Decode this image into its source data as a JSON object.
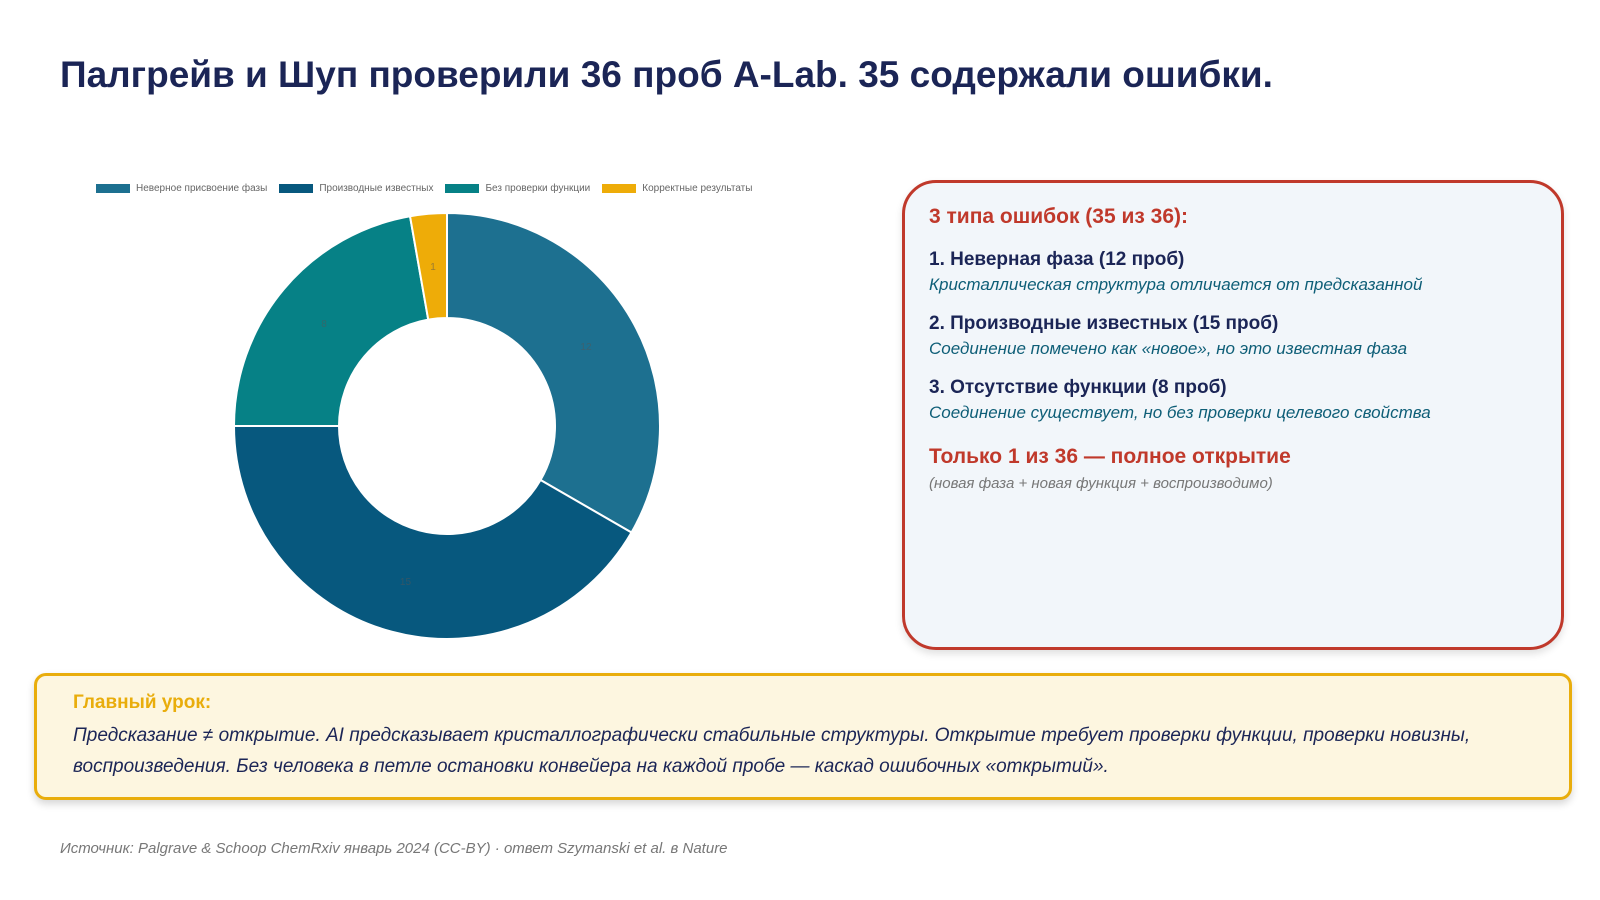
{
  "slide": {
    "title": "Палгрейв и Шуп проверили 36 проб A-Lab. 35 содержали ошибки."
  },
  "chart_data": {
    "type": "pie",
    "categories": [
      "Неверное присвоение фазы",
      "Производные известных",
      "Без проверки функции",
      "Корректные результаты"
    ],
    "values": [
      12,
      15,
      8,
      1
    ],
    "colors": [
      "#1d7090",
      "#07587e",
      "#068186",
      "#eeac08"
    ],
    "legend_position": "top",
    "donut": true
  },
  "card": {
    "heading": "3 типа ошибок (35 из 36):",
    "items": [
      {
        "title": "1. Неверная фаза (12 проб)",
        "desc": "Кристаллическая структура отличается от предсказанной"
      },
      {
        "title": "2. Производные известных (15 проб)",
        "desc": "Соединение помечено как «новое», но это известная фаза"
      },
      {
        "title": "3. Отсутствие функции (8 проб)",
        "desc": "Соединение существует, но без проверки целевого свойства"
      }
    ],
    "discovery": "Только 1 из 36 — полное открытие",
    "discovery_note": "(новая фаза + новая функция + воспроизводимо)"
  },
  "lesson": {
    "heading": "Главный урок:",
    "text": "Предсказание ≠ открытие. AI предсказывает кристаллографически стабильные структуры. Открытие требует проверки функции, проверки новизны, воспроизведения. Без человека в петле остановки конвейера на каждой пробе — каскад ошибочных «открытий»."
  },
  "source": "Источник: Palgrave & Schoop ChemRxiv январь 2024 (CC-BY) · ответ Szymanski et al. в Nature",
  "colors": {
    "title": "#1b2556",
    "accent_red": "#c0392b",
    "accent_gold": "#e9ad0c",
    "card_bg": "#f2f6fa",
    "lesson_bg": "#fdf6e0"
  }
}
